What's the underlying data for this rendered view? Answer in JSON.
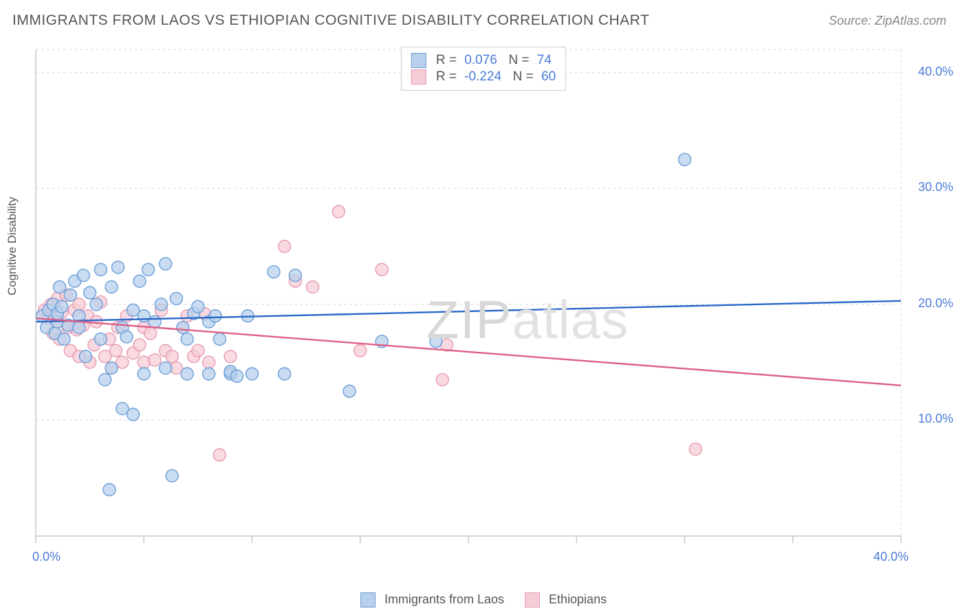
{
  "header": {
    "title": "IMMIGRANTS FROM LAOS VS ETHIOPIAN COGNITIVE DISABILITY CORRELATION CHART",
    "source": "Source: ZipAtlas.com"
  },
  "watermark": "ZIPatlas",
  "chart": {
    "type": "scatter",
    "ylabel": "Cognitive Disability",
    "xlim": [
      0,
      40
    ],
    "ylim": [
      0,
      42
    ],
    "x_ticks": [
      0,
      5,
      10,
      15,
      20,
      25,
      30,
      35,
      40
    ],
    "x_tick_labels": [
      "0.0%",
      "",
      "",
      "",
      "",
      "",
      "",
      "",
      "40.0%"
    ],
    "y_ticks": [
      10,
      20,
      30,
      40
    ],
    "y_tick_labels": [
      "10.0%",
      "20.0%",
      "30.0%",
      "40.0%"
    ],
    "grid_color": "#d8d8d8",
    "axis_color": "#bbbbbb",
    "background_color": "#ffffff",
    "marker_radius": 9,
    "marker_stroke_width": 1.4,
    "line_width": 2.4,
    "axis_label_color": "#4a7bd8",
    "axis_label_fontsize": 18,
    "series": [
      {
        "name": "Immigrants from Laos",
        "fill": "#b8d0ec",
        "stroke": "#6a9ed8",
        "line_color": "#2968c8",
        "R": "0.076",
        "N": "74",
        "trend": {
          "y_at_x0": 18.5,
          "y_at_xmax": 20.3
        },
        "points": [
          [
            0.3,
            19.0
          ],
          [
            0.5,
            18.0
          ],
          [
            0.6,
            19.5
          ],
          [
            0.8,
            20.0
          ],
          [
            0.9,
            17.5
          ],
          [
            1.0,
            18.5
          ],
          [
            1.0,
            19.2
          ],
          [
            1.1,
            21.5
          ],
          [
            1.2,
            19.8
          ],
          [
            1.3,
            17.0
          ],
          [
            1.5,
            18.2
          ],
          [
            1.6,
            20.8
          ],
          [
            1.8,
            22.0
          ],
          [
            2.0,
            18.0
          ],
          [
            2.0,
            19.0
          ],
          [
            2.2,
            22.5
          ],
          [
            2.3,
            15.5
          ],
          [
            2.5,
            21.0
          ],
          [
            2.8,
            20.0
          ],
          [
            3.0,
            23.0
          ],
          [
            3.0,
            17.0
          ],
          [
            3.2,
            13.5
          ],
          [
            3.4,
            4.0
          ],
          [
            3.5,
            14.5
          ],
          [
            3.5,
            21.5
          ],
          [
            3.8,
            23.2
          ],
          [
            4.0,
            11.0
          ],
          [
            4.0,
            18.0
          ],
          [
            4.2,
            17.2
          ],
          [
            4.5,
            10.5
          ],
          [
            4.5,
            19.5
          ],
          [
            4.8,
            22.0
          ],
          [
            5.0,
            14.0
          ],
          [
            5.0,
            19.0
          ],
          [
            5.2,
            23.0
          ],
          [
            5.5,
            18.5
          ],
          [
            5.8,
            20.0
          ],
          [
            6.0,
            23.5
          ],
          [
            6.0,
            14.5
          ],
          [
            6.3,
            5.2
          ],
          [
            6.5,
            20.5
          ],
          [
            6.8,
            18.0
          ],
          [
            7.0,
            17.0
          ],
          [
            7.0,
            14.0
          ],
          [
            7.3,
            19.2
          ],
          [
            7.5,
            19.8
          ],
          [
            8.0,
            18.5
          ],
          [
            8.0,
            14.0
          ],
          [
            8.3,
            19.0
          ],
          [
            8.5,
            17.0
          ],
          [
            9.0,
            14.0
          ],
          [
            9.0,
            14.2
          ],
          [
            9.3,
            13.8
          ],
          [
            9.8,
            19.0
          ],
          [
            10.0,
            14.0
          ],
          [
            11.0,
            22.8
          ],
          [
            11.5,
            14.0
          ],
          [
            12.0,
            22.5
          ],
          [
            14.5,
            12.5
          ],
          [
            16.0,
            16.8
          ],
          [
            18.5,
            16.8
          ],
          [
            30.0,
            32.5
          ]
        ]
      },
      {
        "name": "Ethiopians",
        "fill": "#f5cdd6",
        "stroke": "#e89ab0",
        "line_color": "#dd5f88",
        "R": "-0.224",
        "N": "60",
        "trend": {
          "y_at_x0": 18.8,
          "y_at_xmax": 13.0
        },
        "points": [
          [
            0.4,
            19.5
          ],
          [
            0.6,
            18.8
          ],
          [
            0.7,
            20.0
          ],
          [
            0.8,
            17.5
          ],
          [
            0.9,
            19.0
          ],
          [
            1.0,
            20.5
          ],
          [
            1.0,
            18.5
          ],
          [
            1.1,
            17.0
          ],
          [
            1.2,
            19.3
          ],
          [
            1.4,
            20.8
          ],
          [
            1.5,
            18.0
          ],
          [
            1.6,
            16.0
          ],
          [
            1.8,
            19.5
          ],
          [
            1.9,
            17.8
          ],
          [
            2.0,
            15.5
          ],
          [
            2.0,
            20.0
          ],
          [
            2.2,
            18.2
          ],
          [
            2.4,
            19.0
          ],
          [
            2.5,
            15.0
          ],
          [
            2.7,
            16.5
          ],
          [
            2.8,
            18.5
          ],
          [
            3.0,
            20.2
          ],
          [
            3.2,
            15.5
          ],
          [
            3.4,
            17.0
          ],
          [
            3.5,
            14.5
          ],
          [
            3.7,
            16.0
          ],
          [
            3.8,
            18.0
          ],
          [
            4.0,
            15.0
          ],
          [
            4.2,
            19.0
          ],
          [
            4.5,
            15.8
          ],
          [
            4.8,
            16.5
          ],
          [
            5.0,
            18.0
          ],
          [
            5.0,
            15.0
          ],
          [
            5.3,
            17.5
          ],
          [
            5.5,
            15.2
          ],
          [
            5.8,
            19.5
          ],
          [
            6.0,
            16.0
          ],
          [
            6.3,
            15.5
          ],
          [
            6.5,
            14.5
          ],
          [
            6.8,
            18.0
          ],
          [
            7.0,
            19.0
          ],
          [
            7.3,
            15.5
          ],
          [
            7.5,
            16.0
          ],
          [
            7.8,
            19.2
          ],
          [
            8.0,
            15.0
          ],
          [
            8.5,
            7.0
          ],
          [
            9.0,
            15.5
          ],
          [
            11.5,
            25.0
          ],
          [
            12.0,
            22.0
          ],
          [
            12.8,
            21.5
          ],
          [
            14.0,
            28.0
          ],
          [
            15.0,
            16.0
          ],
          [
            16.0,
            23.0
          ],
          [
            18.8,
            13.5
          ],
          [
            19.0,
            16.5
          ],
          [
            30.5,
            7.5
          ]
        ]
      }
    ]
  },
  "bottom_legend": [
    {
      "label": "Immigrants from Laos",
      "fill": "#b8d0ec",
      "stroke": "#6a9ed8"
    },
    {
      "label": "Ethiopians",
      "fill": "#f5cdd6",
      "stroke": "#e89ab0"
    }
  ]
}
